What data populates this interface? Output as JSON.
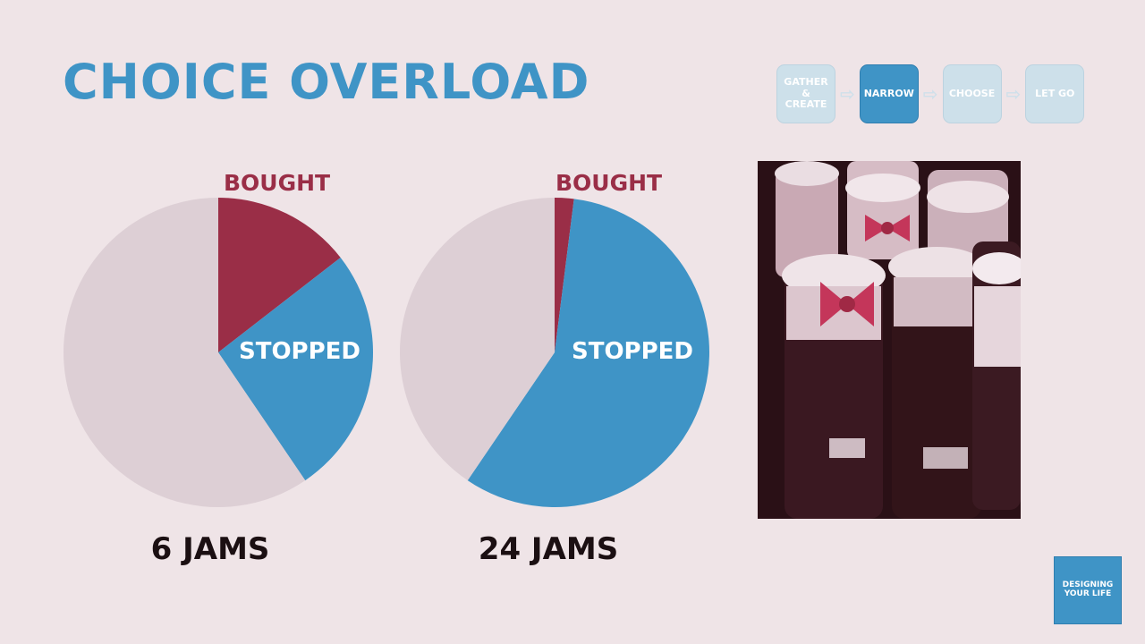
{
  "slide": {
    "title": "CHOICE OVERLOAD"
  },
  "process": {
    "steps": [
      {
        "label": "GATHER & CREATE",
        "active": false
      },
      {
        "label": "NARROW",
        "active": true
      },
      {
        "label": "CHOOSE",
        "active": false
      },
      {
        "label": "LET GO",
        "active": false
      }
    ]
  },
  "logo": {
    "line1": "DESIGNING",
    "line2": "YOUR LIFE"
  },
  "colors": {
    "accent": "#3f94c6",
    "bought": "#9a2e47",
    "remainder": "#ddcfd5",
    "dark": "#1b0f12"
  },
  "chart_data": [
    {
      "type": "pie",
      "caption": "6 JAMS",
      "slices": [
        {
          "label": "BOUGHT",
          "value": 0.145,
          "color": "#9a2e47"
        },
        {
          "label": "STOPPED",
          "value": 0.26,
          "color": "#3f94c6"
        },
        {
          "label": "",
          "value": 0.595,
          "color": "#ddcfd5"
        }
      ]
    },
    {
      "type": "pie",
      "caption": "24 JAMS",
      "slices": [
        {
          "label": "BOUGHT",
          "value": 0.02,
          "color": "#9a2e47"
        },
        {
          "label": "STOPPED",
          "value": 0.575,
          "color": "#3f94c6"
        },
        {
          "label": "",
          "value": 0.405,
          "color": "#ddcfd5"
        }
      ]
    }
  ]
}
